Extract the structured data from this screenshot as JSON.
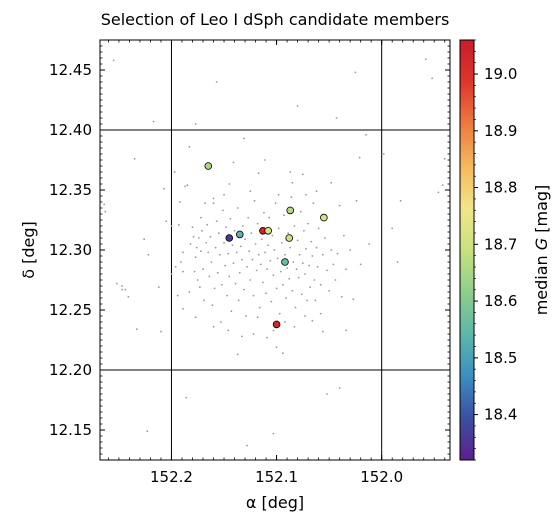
{
  "chart_data": {
    "type": "scatter",
    "title": "Selection of Leo I dSph candidate members",
    "xlabel": "α [deg]",
    "ylabel": "δ [deg]",
    "xlim": [
      152.268,
      151.935
    ],
    "ylim": [
      12.125,
      12.475
    ],
    "x_ticks": [
      "152.2",
      "152.1",
      "152.0"
    ],
    "x_tick_values": [
      152.2,
      152.1,
      152.0
    ],
    "y_ticks": [
      "12.15",
      "12.20",
      "12.25",
      "12.30",
      "12.35",
      "12.40",
      "12.45"
    ],
    "y_tick_values": [
      12.15,
      12.2,
      12.25,
      12.3,
      12.35,
      12.4,
      12.45
    ],
    "grid_lines": {
      "x": [
        152.2,
        152.0
      ],
      "y": [
        12.4,
        12.2
      ]
    },
    "colorbar": {
      "label": "median G [mag]",
      "label_prefix": "median ",
      "label_var": "G",
      "label_suffix": " [mag]",
      "range": [
        18.32,
        19.06
      ],
      "ticks": [
        "18.4",
        "18.5",
        "18.6",
        "18.7",
        "18.8",
        "18.9",
        "19.0"
      ],
      "tick_values": [
        18.4,
        18.5,
        18.6,
        18.7,
        18.8,
        18.9,
        19.0
      ],
      "colormap": [
        "#5e1f8e",
        "#3b4fa3",
        "#3b8fc0",
        "#5cb8a8",
        "#8ecf8a",
        "#c9e27e",
        "#f2e58a",
        "#f5b85c",
        "#ee7a3e",
        "#e0352c",
        "#c81c2a"
      ]
    },
    "background_point_color": "#9a9a9a",
    "highlighted": [
      {
        "x": 152.165,
        "y": 12.37,
        "g": 18.65
      },
      {
        "x": 152.145,
        "y": 12.31,
        "g": 18.36
      },
      {
        "x": 152.135,
        "y": 12.313,
        "g": 18.53
      },
      {
        "x": 152.113,
        "y": 12.316,
        "g": 19.04
      },
      {
        "x": 152.108,
        "y": 12.316,
        "g": 18.71
      },
      {
        "x": 152.1,
        "y": 12.238,
        "g": 19.03
      },
      {
        "x": 152.092,
        "y": 12.29,
        "g": 18.56
      },
      {
        "x": 152.088,
        "y": 12.31,
        "g": 18.69
      },
      {
        "x": 152.087,
        "y": 12.333,
        "g": 18.66
      },
      {
        "x": 152.055,
        "y": 12.327,
        "g": 18.71
      }
    ],
    "background": [
      [
        152.264,
        12.338
      ],
      [
        152.263,
        12.332
      ],
      [
        152.255,
        12.458
      ],
      [
        152.252,
        12.272
      ],
      [
        152.247,
        12.27
      ],
      [
        152.247,
        12.267
      ],
      [
        152.244,
        12.267
      ],
      [
        152.241,
        12.261
      ],
      [
        152.235,
        12.376
      ],
      [
        152.233,
        12.234
      ],
      [
        152.226,
        12.309
      ],
      [
        152.223,
        12.149
      ],
      [
        152.222,
        12.296
      ],
      [
        152.217,
        12.407
      ],
      [
        152.212,
        12.269
      ],
      [
        152.207,
        12.351
      ],
      [
        152.205,
        12.324
      ],
      [
        152.2,
        12.28
      ],
      [
        152.2,
        12.32
      ],
      [
        152.197,
        12.365
      ],
      [
        152.196,
        12.286
      ],
      [
        152.194,
        12.262
      ],
      [
        152.193,
        12.321
      ],
      [
        152.191,
        12.29
      ],
      [
        152.189,
        12.282
      ],
      [
        152.189,
        12.251
      ],
      [
        152.189,
        12.298
      ],
      [
        152.187,
        12.353
      ],
      [
        152.186,
        12.177
      ],
      [
        152.185,
        12.354
      ],
      [
        152.183,
        12.265
      ],
      [
        152.182,
        12.305
      ],
      [
        152.18,
        12.319
      ],
      [
        152.179,
        12.311
      ],
      [
        152.178,
        12.282
      ],
      [
        152.177,
        12.294
      ],
      [
        152.176,
        12.302
      ],
      [
        152.175,
        12.275
      ],
      [
        152.174,
        12.31
      ],
      [
        152.173,
        12.269
      ],
      [
        152.172,
        12.327
      ],
      [
        152.172,
        12.299
      ],
      [
        152.171,
        12.316
      ],
      [
        152.17,
        12.284
      ],
      [
        152.169,
        12.258
      ],
      [
        152.168,
        12.339
      ],
      [
        152.167,
        12.306
      ],
      [
        152.166,
        12.321
      ],
      [
        152.165,
        12.298
      ],
      [
        152.164,
        12.278
      ],
      [
        152.163,
        12.311
      ],
      [
        152.162,
        12.29
      ],
      [
        152.161,
        12.254
      ],
      [
        152.16,
        12.343
      ],
      [
        152.159,
        12.268
      ],
      [
        152.158,
        12.302
      ],
      [
        152.157,
        12.324
      ],
      [
        152.156,
        12.281
      ],
      [
        152.155,
        12.314
      ],
      [
        152.154,
        12.296
      ],
      [
        152.153,
        12.24
      ],
      [
        152.152,
        12.271
      ],
      [
        152.151,
        12.333
      ],
      [
        152.15,
        12.306
      ],
      [
        152.149,
        12.287
      ],
      [
        152.148,
        12.319
      ],
      [
        152.147,
        12.262
      ],
      [
        152.146,
        12.297
      ],
      [
        152.145,
        12.278
      ],
      [
        152.144,
        12.326
      ],
      [
        152.143,
        12.249
      ],
      [
        152.142,
        12.304
      ],
      [
        152.141,
        12.289
      ],
      [
        152.14,
        12.316
      ],
      [
        152.139,
        12.272
      ],
      [
        152.138,
        12.298
      ],
      [
        152.137,
        12.335
      ],
      [
        152.136,
        12.258
      ],
      [
        152.135,
        12.281
      ],
      [
        152.134,
        12.303
      ],
      [
        152.133,
        12.292
      ],
      [
        152.132,
        12.32
      ],
      [
        152.131,
        12.267
      ],
      [
        152.13,
        12.309
      ],
      [
        152.129,
        12.245
      ],
      [
        152.128,
        12.286
      ],
      [
        152.127,
        12.327
      ],
      [
        152.126,
        12.299
      ],
      [
        152.125,
        12.275
      ],
      [
        152.124,
        12.314
      ],
      [
        152.123,
        12.292
      ],
      [
        152.122,
        12.262
      ],
      [
        152.121,
        12.341
      ],
      [
        152.12,
        12.305
      ],
      [
        152.119,
        12.283
      ],
      [
        152.118,
        12.322
      ],
      [
        152.117,
        12.296
      ],
      [
        152.116,
        12.252
      ],
      [
        152.115,
        12.288
      ],
      [
        152.114,
        12.309
      ],
      [
        152.113,
        12.273
      ],
      [
        152.112,
        12.331
      ],
      [
        152.111,
        12.298
      ],
      [
        152.11,
        12.264
      ],
      [
        152.109,
        12.284
      ],
      [
        152.108,
        12.304
      ],
      [
        152.107,
        12.327
      ],
      [
        152.106,
        12.291
      ],
      [
        152.105,
        12.257
      ],
      [
        152.104,
        12.312
      ],
      [
        152.103,
        12.279
      ],
      [
        152.102,
        12.3
      ],
      [
        152.101,
        12.339
      ],
      [
        152.1,
        12.268
      ],
      [
        152.099,
        12.293
      ],
      [
        152.098,
        12.318
      ],
      [
        152.097,
        12.247
      ],
      [
        152.096,
        12.282
      ],
      [
        152.095,
        12.306
      ],
      [
        152.094,
        12.271
      ],
      [
        152.093,
        12.329
      ],
      [
        152.092,
        12.296
      ],
      [
        152.091,
        12.26
      ],
      [
        152.09,
        12.285
      ],
      [
        152.089,
        12.314
      ],
      [
        152.088,
        12.276
      ],
      [
        152.087,
        12.302
      ],
      [
        152.086,
        12.344
      ],
      [
        152.085,
        12.266
      ],
      [
        152.084,
        12.29
      ],
      [
        152.083,
        12.32
      ],
      [
        152.082,
        12.252
      ],
      [
        152.081,
        12.284
      ],
      [
        152.08,
        12.308
      ],
      [
        152.079,
        12.277
      ],
      [
        152.078,
        12.296
      ],
      [
        152.077,
        12.332
      ],
      [
        152.076,
        12.263
      ],
      [
        152.075,
        12.289
      ],
      [
        152.074,
        12.316
      ],
      [
        152.073,
        12.28
      ],
      [
        152.072,
        12.301
      ],
      [
        152.071,
        12.258
      ],
      [
        152.07,
        12.322
      ],
      [
        152.069,
        12.287
      ],
      [
        152.068,
        12.269
      ],
      [
        152.067,
        12.307
      ],
      [
        152.066,
        12.295
      ],
      [
        152.065,
        12.339
      ],
      [
        152.064,
        12.275
      ],
      [
        152.063,
        12.258
      ],
      [
        152.062,
        12.302
      ],
      [
        152.061,
        12.286
      ],
      [
        152.06,
        12.318
      ],
      [
        152.058,
        12.271
      ],
      [
        152.056,
        12.296
      ],
      [
        152.054,
        12.31
      ],
      [
        152.052,
        12.283
      ],
      [
        152.05,
        12.266
      ],
      [
        152.048,
        12.3
      ],
      [
        152.046,
        12.288
      ],
      [
        152.044,
        12.275
      ],
      [
        152.042,
        12.297
      ],
      [
        152.04,
        12.337
      ],
      [
        152.038,
        12.261
      ],
      [
        152.036,
        12.312
      ],
      [
        152.034,
        12.284
      ],
      [
        152.03,
        12.3
      ],
      [
        152.027,
        12.259
      ],
      [
        152.024,
        12.341
      ],
      [
        152.02,
        12.288
      ],
      [
        152.015,
        12.396
      ],
      [
        152.012,
        12.305
      ],
      [
        151.998,
        12.38
      ],
      [
        151.99,
        12.318
      ],
      [
        151.985,
        12.29
      ],
      [
        151.982,
        12.341
      ],
      [
        151.958,
        12.459
      ],
      [
        151.952,
        12.443
      ],
      [
        151.946,
        12.348
      ],
      [
        151.942,
        12.354
      ],
      [
        151.94,
        12.376
      ],
      [
        152.21,
        12.232
      ],
      [
        152.177,
        12.405
      ],
      [
        152.145,
        12.355
      ],
      [
        152.131,
        12.393
      ],
      [
        152.128,
        12.137
      ],
      [
        152.103,
        12.147
      ],
      [
        152.1,
        12.219
      ],
      [
        152.094,
        12.214
      ],
      [
        152.08,
        12.42
      ],
      [
        152.052,
        12.18
      ],
      [
        152.043,
        12.41
      ],
      [
        152.04,
        12.185
      ],
      [
        152.025,
        12.448
      ],
      [
        152.183,
        12.386
      ],
      [
        152.157,
        12.44
      ],
      [
        152.141,
        12.373
      ],
      [
        152.137,
        12.213
      ],
      [
        152.122,
        12.23
      ],
      [
        152.117,
        12.364
      ],
      [
        152.111,
        12.375
      ],
      [
        152.109,
        12.227
      ],
      [
        152.087,
        12.365
      ],
      [
        152.075,
        12.363
      ],
      [
        152.066,
        12.241
      ],
      [
        152.062,
        12.349
      ],
      [
        152.056,
        12.232
      ],
      [
        152.048,
        12.356
      ],
      [
        152.034,
        12.233
      ],
      [
        152.021,
        12.377
      ],
      [
        152.192,
        12.34
      ],
      [
        152.16,
        12.339
      ],
      [
        152.15,
        12.346
      ],
      [
        152.125,
        12.349
      ],
      [
        152.098,
        12.346
      ],
      [
        152.085,
        12.356
      ],
      [
        152.072,
        12.346
      ],
      [
        152.177,
        12.244
      ],
      [
        152.16,
        12.236
      ],
      [
        152.146,
        12.233
      ],
      [
        152.133,
        12.228
      ],
      [
        152.118,
        12.244
      ],
      [
        152.103,
        12.233
      ],
      [
        152.092,
        12.24
      ],
      [
        152.083,
        12.236
      ],
      [
        152.073,
        12.245
      ],
      [
        152.058,
        12.247
      ]
    ]
  }
}
